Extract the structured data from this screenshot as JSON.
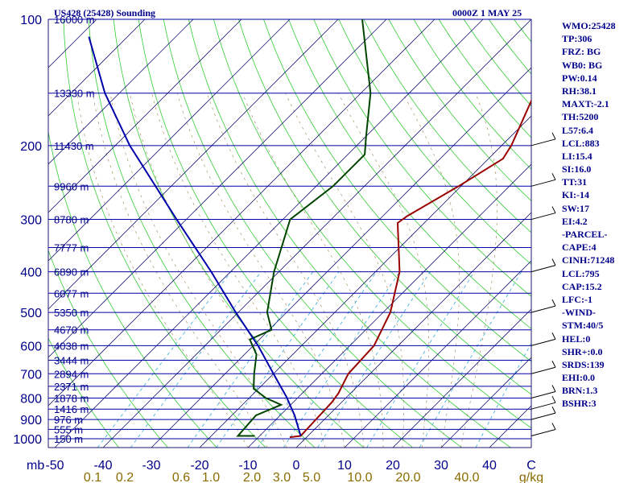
{
  "header": {
    "station": "US428 (25428) Sounding",
    "time": "0000Z  1 MAY 25"
  },
  "sidebar": [
    "WMO:25428",
    "TP:306",
    "FRZ: BG",
    "WB0: BG",
    "PW:0.14",
    "RH:38.1",
    "MAXT:-2.1",
    "TH:5200",
    "L57:6.4",
    "LCL:883",
    "LI:15.4",
    "SI:16.0",
    "TT:31",
    "KI:-14",
    "SW:17",
    "EI:4.2",
    "-PARCEL-",
    "CAPE:4",
    "CINH:71248",
    "LCL:795",
    "CAP:15.2",
    "LFC:-1",
    "-WIND-",
    "STM:40/5",
    "HEL:0",
    "SHR+:0.0",
    "SRDS:139",
    "EHI:0.0",
    "BRN:1.3",
    "BSHR:3"
  ],
  "chart_data": {
    "type": "line",
    "title": "US428 (25428) Sounding",
    "xlabel": "C",
    "ylabel": "mb",
    "pressure_ticks": [
      100,
      200,
      300,
      400,
      500,
      600,
      700,
      800,
      900,
      1000
    ],
    "temperature_ticks": [
      -50,
      -40,
      -30,
      -20,
      -10,
      0,
      10,
      20,
      30,
      40
    ],
    "temperature_unit": "C",
    "mixing_ratio_ticks": [
      "0.1",
      "0.2",
      "0.6",
      "1.0",
      "2.0",
      "3.0",
      "5.0",
      "10.0",
      "20.0",
      "40.0"
    ],
    "mixing_ratio_unit": "g/kg",
    "pressure_unit": "mb",
    "height_labels": [
      {
        "p": 100,
        "label": "16000 m"
      },
      {
        "p": 150,
        "label": "13330 m"
      },
      {
        "p": 200,
        "label": "11430 m"
      },
      {
        "p": 250,
        "label": "9960 m"
      },
      {
        "p": 300,
        "label": "8780 m"
      },
      {
        "p": 350,
        "label": "7777 m"
      },
      {
        "p": 400,
        "label": "6890 m"
      },
      {
        "p": 450,
        "label": "6077 m"
      },
      {
        "p": 500,
        "label": "5350 m"
      },
      {
        "p": 550,
        "label": "4670 m"
      },
      {
        "p": 600,
        "label": "4038 m"
      },
      {
        "p": 650,
        "label": "3444 m"
      },
      {
        "p": 700,
        "label": "2894 m"
      },
      {
        "p": 750,
        "label": "2371 m"
      },
      {
        "p": 800,
        "label": "1878 m"
      },
      {
        "p": 850,
        "label": "1416 m"
      },
      {
        "p": 900,
        "label": "976 m"
      },
      {
        "p": 950,
        "label": "555 m"
      },
      {
        "p": 1000,
        "label": "150 m"
      }
    ],
    "series": [
      {
        "role": "temperature",
        "color": "#990000",
        "points": [
          {
            "p": 992,
            "t": -3.5
          },
          {
            "p": 985,
            "t": -1.5
          },
          {
            "p": 820,
            "t": -2.0
          },
          {
            "p": 780,
            "t": -2.5
          },
          {
            "p": 700,
            "t": -4.5
          },
          {
            "p": 600,
            "t": -5.0
          },
          {
            "p": 500,
            "t": -8.5
          },
          {
            "p": 400,
            "t": -15.0
          },
          {
            "p": 306,
            "t": -25.5
          },
          {
            "p": 295,
            "t": -25.0
          },
          {
            "p": 250,
            "t": -20.5
          },
          {
            "p": 215,
            "t": -17.0
          },
          {
            "p": 200,
            "t": -18.0
          },
          {
            "p": 150,
            "t": -24.0
          },
          {
            "p": 100,
            "t": -32.5
          }
        ]
      },
      {
        "role": "dewpoint",
        "color": "#004400",
        "points": [
          {
            "p": 985,
            "t": -11.0
          },
          {
            "p": 985,
            "t": -14.5
          },
          {
            "p": 880,
            "t": -15.0
          },
          {
            "p": 830,
            "t": -12.0
          },
          {
            "p": 800,
            "t": -16.5
          },
          {
            "p": 760,
            "t": -21.0
          },
          {
            "p": 700,
            "t": -24.0
          },
          {
            "p": 630,
            "t": -27.5
          },
          {
            "p": 580,
            "t": -32.0
          },
          {
            "p": 550,
            "t": -29.5
          },
          {
            "p": 500,
            "t": -34.0
          },
          {
            "p": 400,
            "t": -41.0
          },
          {
            "p": 300,
            "t": -48.5
          },
          {
            "p": 250,
            "t": -46.5
          },
          {
            "p": 210,
            "t": -46.5
          },
          {
            "p": 190,
            "t": -50.0
          },
          {
            "p": 150,
            "t": -58.0
          },
          {
            "p": 100,
            "t": -75.0
          }
        ]
      },
      {
        "role": "parcel",
        "color": "#0000aa",
        "points": [
          {
            "p": 985,
            "t": -1.5
          },
          {
            "p": 880,
            "t": -7.0
          },
          {
            "p": 795,
            "t": -12.5
          },
          {
            "p": 700,
            "t": -20.0
          },
          {
            "p": 600,
            "t": -29.0
          },
          {
            "p": 500,
            "t": -40.5
          },
          {
            "p": 400,
            "t": -54.0
          },
          {
            "p": 300,
            "t": -72.0
          },
          {
            "p": 200,
            "t": -97.0
          },
          {
            "p": 150,
            "t": -113.0
          },
          {
            "p": 110,
            "t": -128.0
          }
        ]
      }
    ],
    "wind_barbs": [
      {
        "p": 985
      },
      {
        "p": 900
      },
      {
        "p": 850
      },
      {
        "p": 800
      },
      {
        "p": 700
      },
      {
        "p": 600
      },
      {
        "p": 500
      },
      {
        "p": 400
      },
      {
        "p": 300
      },
      {
        "p": 250
      },
      {
        "p": 200
      }
    ],
    "grid": true
  }
}
